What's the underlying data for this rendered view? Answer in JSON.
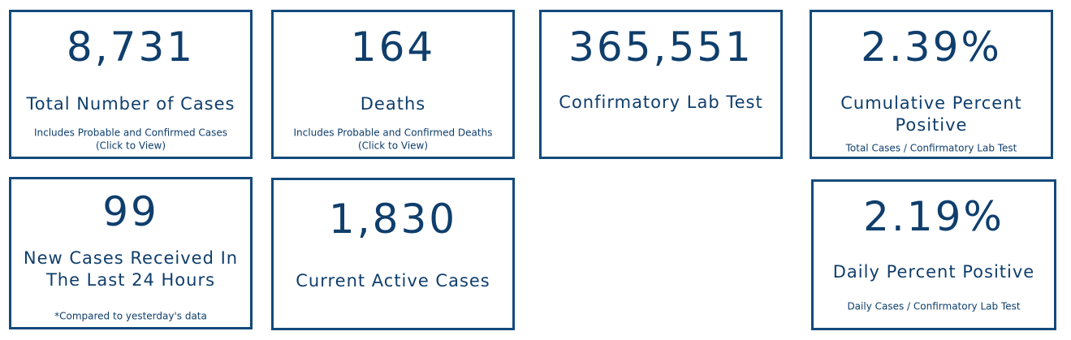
{
  "cards": [
    {
      "value": "8,731",
      "label": [
        "Total Number of Cases"
      ],
      "note": [
        "Includes Probable and Confirmed Cases",
        "(Click to View)"
      ]
    },
    {
      "value": "164",
      "label": [
        "Deaths"
      ],
      "note": [
        "Includes Probable and Confirmed Deaths",
        "(Click to View)"
      ]
    },
    {
      "value": "365,551",
      "label": [
        "Confirmatory Lab Test"
      ]
    },
    {
      "value": "2.39%",
      "label": [
        "Cumulative Percent",
        "Positive"
      ],
      "note": [
        "Total Cases / Confirmatory Lab Test"
      ]
    },
    {
      "value": "99",
      "label": [
        "New Cases Received In",
        "The Last 24 Hours"
      ],
      "note": [
        "*Compared to yesterday's data"
      ]
    },
    {
      "value": "1,830",
      "label": [
        "Current Active Cases"
      ]
    },
    {
      "value": "2.19%",
      "label": [
        "Daily Percent Positive"
      ],
      "note": [
        "Daily Cases / Confirmatory Lab Test"
      ]
    }
  ]
}
